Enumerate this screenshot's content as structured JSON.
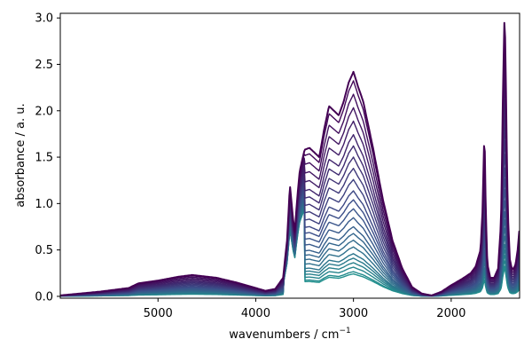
{
  "chart_data": {
    "type": "line",
    "title": "",
    "xlabel": "wavenumbers / cm",
    "xlabel_superscript": "−1",
    "ylabel": "absorbance / a. u.",
    "xlim": [
      6000,
      1300
    ],
    "ylim": [
      -0.02,
      3.05
    ],
    "xaxis_inverted": true,
    "x_ticks": [
      5000,
      4000,
      3000,
      2000
    ],
    "x_tick_labels": [
      "5000",
      "4000",
      "3000",
      "2000"
    ],
    "y_ticks": [
      0.0,
      0.5,
      1.0,
      1.5,
      2.0,
      2.5,
      3.0
    ],
    "y_tick_labels": [
      "0.0",
      "0.5",
      "1.0",
      "1.5",
      "2.0",
      "2.5",
      "3.0"
    ],
    "grid": false,
    "legend": "none",
    "colormap_dark": "#440154",
    "colormap_mid": "#3b528b",
    "colormap_light": "#21908d",
    "colormap_end": "#2a9d8a",
    "series_count": 24,
    "reference_spectrum": {
      "x": [
        6000,
        5600,
        5300,
        5200,
        5000,
        4800,
        4650,
        4400,
        4200,
        4000,
        3900,
        3800,
        3720,
        3680,
        3650,
        3620,
        3600,
        3580,
        3550,
        3500,
        3450,
        3400,
        3350,
        3300,
        3250,
        3200,
        3150,
        3100,
        3050,
        3000,
        2950,
        2900,
        2800,
        2700,
        2600,
        2500,
        2400,
        2300,
        2200,
        2100,
        2000,
        1900,
        1800,
        1750,
        1700,
        1680,
        1660,
        1645,
        1630,
        1600,
        1560,
        1520,
        1490,
        1470,
        1455,
        1445,
        1435,
        1420,
        1400,
        1380,
        1360,
        1340,
        1320,
        1300
      ],
      "y": [
        0.01,
        0.05,
        0.09,
        0.14,
        0.17,
        0.21,
        0.23,
        0.2,
        0.15,
        0.09,
        0.06,
        0.08,
        0.2,
        0.6,
        1.2,
        0.85,
        0.7,
        1.0,
        1.35,
        1.58,
        1.6,
        1.55,
        1.5,
        1.8,
        2.05,
        2.0,
        1.95,
        2.1,
        2.3,
        2.42,
        2.25,
        2.1,
        1.6,
        1.05,
        0.6,
        0.3,
        0.1,
        0.03,
        0.01,
        0.05,
        0.12,
        0.18,
        0.25,
        0.32,
        0.5,
        0.9,
        1.8,
        0.9,
        0.35,
        0.2,
        0.2,
        0.3,
        0.8,
        2.2,
        3.0,
        2.7,
        1.8,
        0.9,
        0.4,
        0.3,
        0.3,
        0.35,
        0.5,
        0.75
      ]
    },
    "series_scale": [
      1.0,
      0.96,
      0.9,
      0.84,
      0.78,
      0.72,
      0.67,
      0.62,
      0.57,
      0.52,
      0.47,
      0.43,
      0.39,
      0.35,
      0.31,
      0.28,
      0.25,
      0.22,
      0.19,
      0.17,
      0.15,
      0.13,
      0.11,
      0.1
    ]
  }
}
